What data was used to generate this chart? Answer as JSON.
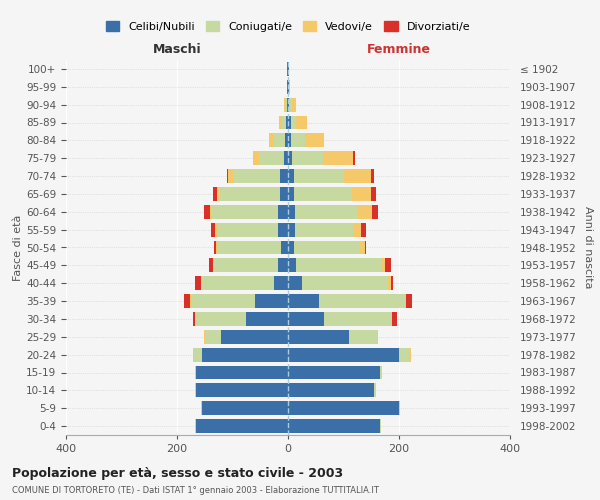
{
  "age_groups": [
    "0-4",
    "5-9",
    "10-14",
    "15-19",
    "20-24",
    "25-29",
    "30-34",
    "35-39",
    "40-44",
    "45-49",
    "50-54",
    "55-59",
    "60-64",
    "65-69",
    "70-74",
    "75-79",
    "80-84",
    "85-89",
    "90-94",
    "95-99",
    "100+"
  ],
  "birth_years": [
    "1998-2002",
    "1993-1997",
    "1988-1992",
    "1983-1987",
    "1978-1982",
    "1973-1977",
    "1968-1972",
    "1963-1967",
    "1958-1962",
    "1953-1957",
    "1948-1952",
    "1943-1947",
    "1938-1942",
    "1933-1937",
    "1928-1932",
    "1923-1927",
    "1918-1922",
    "1913-1917",
    "1908-1912",
    "1903-1907",
    "≤ 1902"
  ],
  "maschi": {
    "celibi": [
      165,
      155,
      165,
      165,
      155,
      120,
      75,
      60,
      25,
      18,
      12,
      18,
      18,
      15,
      15,
      8,
      5,
      3,
      2,
      1,
      1
    ],
    "coniugati": [
      2,
      2,
      2,
      3,
      15,
      30,
      90,
      115,
      130,
      115,
      115,
      110,
      120,
      110,
      85,
      45,
      20,
      8,
      4,
      1,
      0
    ],
    "vedovi": [
      0,
      0,
      0,
      0,
      1,
      2,
      2,
      2,
      2,
      2,
      2,
      3,
      3,
      3,
      8,
      10,
      10,
      5,
      2,
      0,
      0
    ],
    "divorziati": [
      0,
      0,
      0,
      0,
      0,
      0,
      5,
      10,
      10,
      8,
      5,
      8,
      10,
      8,
      2,
      0,
      0,
      0,
      0,
      0,
      0
    ]
  },
  "femmine": {
    "nubili": [
      165,
      200,
      155,
      165,
      200,
      110,
      65,
      55,
      25,
      15,
      10,
      12,
      12,
      10,
      10,
      8,
      5,
      5,
      2,
      1,
      1
    ],
    "coniugate": [
      2,
      2,
      3,
      5,
      20,
      50,
      120,
      155,
      155,
      155,
      120,
      105,
      115,
      105,
      90,
      55,
      25,
      10,
      5,
      1,
      0
    ],
    "vedove": [
      0,
      0,
      0,
      0,
      2,
      3,
      3,
      3,
      5,
      5,
      8,
      15,
      25,
      35,
      50,
      55,
      35,
      20,
      8,
      2,
      0
    ],
    "divorziate": [
      0,
      0,
      0,
      0,
      0,
      0,
      8,
      10,
      5,
      10,
      3,
      8,
      10,
      8,
      5,
      2,
      0,
      0,
      0,
      0,
      0
    ]
  },
  "colors": {
    "celibi": "#3a6fa8",
    "coniugati": "#c5d9a0",
    "vedovi": "#f5c96a",
    "divorziati": "#d9312a"
  },
  "legend_labels": [
    "Celibi/Nubili",
    "Coniugati/e",
    "Vedovi/e",
    "Divorziati/e"
  ],
  "title": "Popolazione per età, sesso e stato civile - 2003",
  "subtitle": "COMUNE DI TORTORETO (TE) - Dati ISTAT 1° gennaio 2003 - Elaborazione TUTTITALIA.IT",
  "ylabel_left": "Fasce di età",
  "ylabel_right": "Anni di nascita",
  "xlabel_left": "Maschi",
  "xlabel_right": "Femmine",
  "xlim": 400,
  "background_color": "#f5f5f5"
}
